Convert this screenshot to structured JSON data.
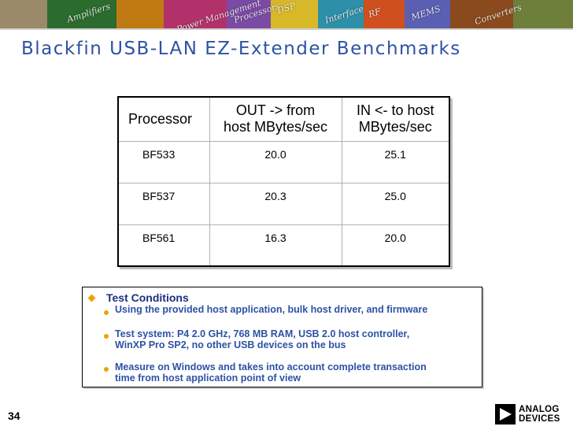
{
  "slide": {
    "title": "Blackfin USB-LAN EZ-Extender Benchmarks",
    "page_number": "34",
    "banner_words": [
      "Amplifiers",
      "Power Management",
      "Processors",
      "DSP",
      "Interface",
      "RF",
      "MEMS",
      "Converters"
    ],
    "accent_color": "#2d52a5",
    "bullet_color": "#f2a100"
  },
  "table": {
    "headers": [
      "Processor",
      "OUT -> from",
      "host MBytes/sec",
      "IN <- to host",
      "MBytes/sec"
    ],
    "rows": [
      [
        "BF533",
        "20.0",
        "25.1"
      ],
      [
        "BF537",
        "20.3",
        "25.0"
      ],
      [
        "BF561",
        "16.3",
        "20.0"
      ]
    ]
  },
  "conditions": {
    "heading": "Test Conditions",
    "items": [
      [
        "Using the provided host application, bulk host driver, and firmware"
      ],
      [
        "Test system: P4 2.0 GHz, 768 MB RAM, USB 2.0 host controller,",
        "WinXP Pro SP2, no other USB devices on the bus"
      ],
      [
        "Measure on Windows and takes into account complete transaction",
        "time from host application point of view"
      ]
    ]
  },
  "logo": {
    "line1": "ANALOG",
    "line2": "DEVICES"
  }
}
